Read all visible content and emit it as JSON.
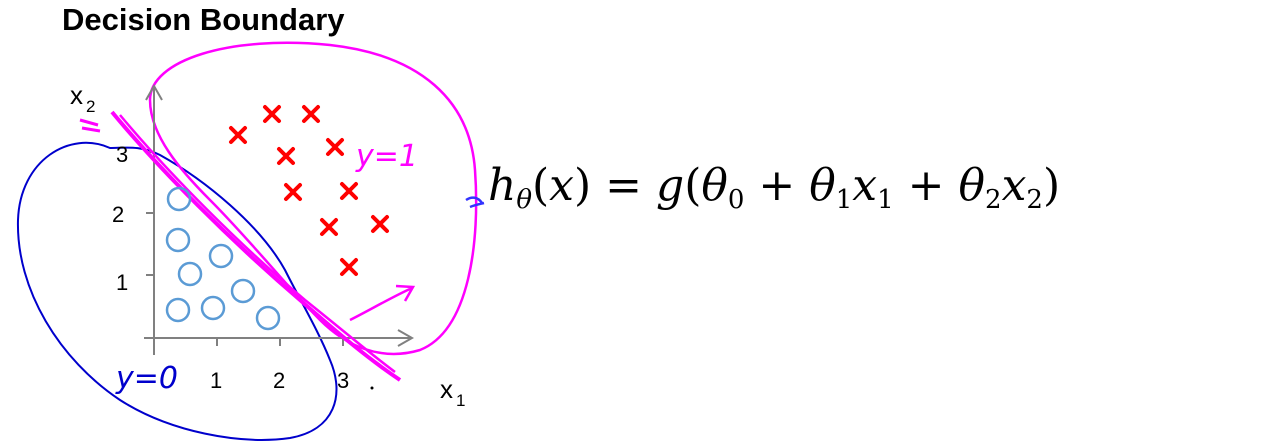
{
  "title": "Decision Boundary",
  "plot": {
    "x_axis_label": "x",
    "x_axis_subscript": "1",
    "y_axis_label": "x",
    "y_axis_subscript": "2",
    "x_ticks": [
      "1",
      "2",
      "3"
    ],
    "y_ticks": [
      "1",
      "2",
      "3"
    ],
    "region_label_positive": "y=1",
    "region_label_negative": "y=0",
    "colors": {
      "negative_points": "#5b9bd5",
      "positive_points": "#ff0000",
      "boundary": "#ff00ff",
      "negative_region": "#0000cc",
      "positive_region": "#ff00ff"
    }
  },
  "formula": {
    "h": "h",
    "theta": "θ",
    "x": "x",
    "g": "g",
    "sub0": "0",
    "sub1": "1",
    "sub2": "2"
  }
}
